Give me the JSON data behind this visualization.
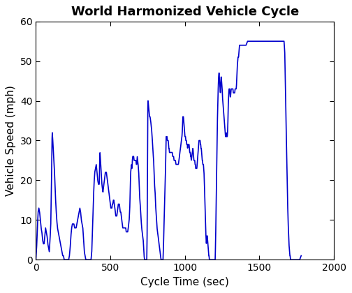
{
  "title": "World Harmonized Vehicle Cycle",
  "xlabel": "Cycle Time (sec)",
  "ylabel": "Vehicle Speed (mph)",
  "line_color": "#0000CC",
  "line_width": 1.2,
  "xlim": [
    0,
    2000
  ],
  "ylim": [
    0,
    60
  ],
  "xticks": [
    0,
    500,
    1000,
    1500,
    2000
  ],
  "yticks": [
    0,
    10,
    20,
    30,
    40,
    50,
    60
  ],
  "title_fontsize": 13,
  "label_fontsize": 11,
  "tick_fontsize": 10,
  "background_color": "#ffffff",
  "grid": false,
  "waypoints": [
    [
      0,
      0
    ],
    [
      5,
      3
    ],
    [
      10,
      8
    ],
    [
      15,
      12
    ],
    [
      20,
      13
    ],
    [
      25,
      12
    ],
    [
      30,
      10
    ],
    [
      35,
      8
    ],
    [
      40,
      7
    ],
    [
      45,
      5
    ],
    [
      50,
      4
    ],
    [
      55,
      4
    ],
    [
      60,
      6
    ],
    [
      65,
      8
    ],
    [
      70,
      7
    ],
    [
      75,
      6
    ],
    [
      80,
      4
    ],
    [
      85,
      3
    ],
    [
      90,
      2
    ],
    [
      95,
      5
    ],
    [
      100,
      9
    ],
    [
      105,
      20
    ],
    [
      108,
      30
    ],
    [
      110,
      32
    ],
    [
      112,
      31
    ],
    [
      115,
      29
    ],
    [
      120,
      26
    ],
    [
      125,
      22
    ],
    [
      130,
      17
    ],
    [
      135,
      13
    ],
    [
      140,
      10
    ],
    [
      145,
      8
    ],
    [
      150,
      7
    ],
    [
      155,
      6
    ],
    [
      160,
      5
    ],
    [
      165,
      4
    ],
    [
      170,
      3
    ],
    [
      175,
      2
    ],
    [
      180,
      1
    ],
    [
      185,
      1
    ],
    [
      190,
      0
    ],
    [
      195,
      0
    ],
    [
      200,
      0
    ],
    [
      205,
      0
    ],
    [
      210,
      0
    ],
    [
      215,
      0
    ],
    [
      220,
      0
    ],
    [
      225,
      1
    ],
    [
      230,
      3
    ],
    [
      235,
      6
    ],
    [
      240,
      8
    ],
    [
      245,
      9
    ],
    [
      250,
      9
    ],
    [
      255,
      9
    ],
    [
      260,
      8
    ],
    [
      265,
      8
    ],
    [
      270,
      8
    ],
    [
      275,
      9
    ],
    [
      280,
      10
    ],
    [
      285,
      11
    ],
    [
      290,
      12
    ],
    [
      295,
      13
    ],
    [
      300,
      12
    ],
    [
      305,
      10
    ],
    [
      310,
      9
    ],
    [
      315,
      8
    ],
    [
      320,
      5
    ],
    [
      325,
      2
    ],
    [
      330,
      1
    ],
    [
      335,
      0
    ],
    [
      340,
      0
    ],
    [
      345,
      0
    ],
    [
      350,
      0
    ],
    [
      355,
      0
    ],
    [
      360,
      0
    ],
    [
      365,
      0
    ],
    [
      370,
      0
    ],
    [
      375,
      2
    ],
    [
      380,
      8
    ],
    [
      385,
      14
    ],
    [
      390,
      19
    ],
    [
      395,
      22
    ],
    [
      400,
      23
    ],
    [
      405,
      24
    ],
    [
      410,
      22
    ],
    [
      415,
      20
    ],
    [
      420,
      19
    ],
    [
      425,
      19
    ],
    [
      427,
      23
    ],
    [
      430,
      27
    ],
    [
      432,
      26
    ],
    [
      435,
      24
    ],
    [
      438,
      22
    ],
    [
      440,
      21
    ],
    [
      443,
      19
    ],
    [
      446,
      18
    ],
    [
      450,
      17
    ],
    [
      453,
      18
    ],
    [
      456,
      19
    ],
    [
      460,
      20
    ],
    [
      463,
      21
    ],
    [
      466,
      22
    ],
    [
      470,
      22
    ],
    [
      473,
      22
    ],
    [
      476,
      21
    ],
    [
      480,
      20
    ],
    [
      483,
      19
    ],
    [
      486,
      18
    ],
    [
      490,
      17
    ],
    [
      493,
      16
    ],
    [
      496,
      15
    ],
    [
      500,
      14
    ],
    [
      503,
      13
    ],
    [
      506,
      13
    ],
    [
      510,
      13
    ],
    [
      513,
      14
    ],
    [
      516,
      14
    ],
    [
      520,
      15
    ],
    [
      523,
      15
    ],
    [
      526,
      14
    ],
    [
      530,
      13
    ],
    [
      533,
      12
    ],
    [
      536,
      11
    ],
    [
      540,
      11
    ],
    [
      543,
      11
    ],
    [
      546,
      12
    ],
    [
      550,
      13
    ],
    [
      553,
      14
    ],
    [
      556,
      14
    ],
    [
      560,
      14
    ],
    [
      563,
      13
    ],
    [
      566,
      12
    ],
    [
      570,
      12
    ],
    [
      573,
      11
    ],
    [
      576,
      10
    ],
    [
      580,
      9
    ],
    [
      583,
      8
    ],
    [
      586,
      8
    ],
    [
      590,
      8
    ],
    [
      593,
      8
    ],
    [
      596,
      8
    ],
    [
      600,
      8
    ],
    [
      603,
      8
    ],
    [
      606,
      7
    ],
    [
      610,
      7
    ],
    [
      613,
      7
    ],
    [
      616,
      7
    ],
    [
      620,
      8
    ],
    [
      623,
      9
    ],
    [
      626,
      10
    ],
    [
      630,
      13
    ],
    [
      633,
      18
    ],
    [
      636,
      22
    ],
    [
      639,
      23
    ],
    [
      641,
      24
    ],
    [
      643,
      23
    ],
    [
      645,
      23
    ],
    [
      647,
      25
    ],
    [
      650,
      26
    ],
    [
      653,
      26
    ],
    [
      656,
      26
    ],
    [
      659,
      25
    ],
    [
      662,
      25
    ],
    [
      665,
      25
    ],
    [
      668,
      25
    ],
    [
      671,
      25
    ],
    [
      674,
      24
    ],
    [
      677,
      24
    ],
    [
      680,
      26
    ],
    [
      683,
      25
    ],
    [
      686,
      24
    ],
    [
      690,
      22
    ],
    [
      693,
      19
    ],
    [
      696,
      16
    ],
    [
      700,
      14
    ],
    [
      703,
      12
    ],
    [
      706,
      10
    ],
    [
      710,
      8
    ],
    [
      713,
      7
    ],
    [
      716,
      6
    ],
    [
      720,
      5
    ],
    [
      723,
      3
    ],
    [
      726,
      1
    ],
    [
      729,
      0
    ],
    [
      732,
      0
    ],
    [
      735,
      0
    ],
    [
      738,
      0
    ],
    [
      741,
      0
    ],
    [
      744,
      0
    ],
    [
      746,
      5
    ],
    [
      748,
      15
    ],
    [
      750,
      32
    ],
    [
      751,
      38
    ],
    [
      752,
      40
    ],
    [
      753,
      40
    ],
    [
      755,
      39
    ],
    [
      758,
      38
    ],
    [
      760,
      37
    ],
    [
      763,
      36
    ],
    [
      766,
      36
    ],
    [
      770,
      35
    ],
    [
      773,
      34
    ],
    [
      776,
      33
    ],
    [
      780,
      31
    ],
    [
      783,
      29
    ],
    [
      786,
      27
    ],
    [
      790,
      25
    ],
    [
      793,
      22
    ],
    [
      796,
      19
    ],
    [
      800,
      17
    ],
    [
      803,
      14
    ],
    [
      806,
      12
    ],
    [
      810,
      10
    ],
    [
      813,
      8
    ],
    [
      816,
      7
    ],
    [
      820,
      6
    ],
    [
      823,
      5
    ],
    [
      826,
      4
    ],
    [
      830,
      3
    ],
    [
      833,
      2
    ],
    [
      836,
      1
    ],
    [
      840,
      0
    ],
    [
      843,
      0
    ],
    [
      846,
      0
    ],
    [
      850,
      0
    ],
    [
      853,
      0
    ],
    [
      856,
      3
    ],
    [
      859,
      8
    ],
    [
      862,
      12
    ],
    [
      865,
      16
    ],
    [
      868,
      20
    ],
    [
      870,
      23
    ],
    [
      872,
      27
    ],
    [
      874,
      31
    ],
    [
      876,
      31
    ],
    [
      878,
      31
    ],
    [
      880,
      31
    ],
    [
      882,
      30
    ],
    [
      884,
      30
    ],
    [
      886,
      30
    ],
    [
      888,
      30
    ],
    [
      890,
      29
    ],
    [
      892,
      28
    ],
    [
      894,
      28
    ],
    [
      896,
      27
    ],
    [
      898,
      27
    ],
    [
      900,
      27
    ],
    [
      903,
      27
    ],
    [
      906,
      27
    ],
    [
      909,
      27
    ],
    [
      912,
      27
    ],
    [
      915,
      27
    ],
    [
      918,
      26
    ],
    [
      921,
      26
    ],
    [
      924,
      26
    ],
    [
      927,
      25
    ],
    [
      930,
      25
    ],
    [
      933,
      25
    ],
    [
      936,
      25
    ],
    [
      940,
      24
    ],
    [
      943,
      24
    ],
    [
      946,
      24
    ],
    [
      950,
      24
    ],
    [
      953,
      24
    ],
    [
      956,
      24
    ],
    [
      960,
      25
    ],
    [
      963,
      26
    ],
    [
      966,
      27
    ],
    [
      970,
      28
    ],
    [
      973,
      29
    ],
    [
      976,
      30
    ],
    [
      980,
      31
    ],
    [
      982,
      32
    ],
    [
      984,
      34
    ],
    [
      986,
      36
    ],
    [
      988,
      36
    ],
    [
      990,
      36
    ],
    [
      992,
      35
    ],
    [
      994,
      34
    ],
    [
      996,
      33
    ],
    [
      998,
      32
    ],
    [
      1000,
      31
    ],
    [
      1002,
      31
    ],
    [
      1004,
      31
    ],
    [
      1006,
      30
    ],
    [
      1008,
      30
    ],
    [
      1010,
      30
    ],
    [
      1012,
      29
    ],
    [
      1014,
      29
    ],
    [
      1016,
      29
    ],
    [
      1018,
      28
    ],
    [
      1020,
      29
    ],
    [
      1022,
      29
    ],
    [
      1024,
      29
    ],
    [
      1026,
      29
    ],
    [
      1028,
      29
    ],
    [
      1030,
      28
    ],
    [
      1032,
      27
    ],
    [
      1034,
      27
    ],
    [
      1036,
      27
    ],
    [
      1038,
      26
    ],
    [
      1040,
      26
    ],
    [
      1043,
      25
    ],
    [
      1046,
      26
    ],
    [
      1050,
      27
    ],
    [
      1052,
      28
    ],
    [
      1054,
      28
    ],
    [
      1056,
      27
    ],
    [
      1058,
      26
    ],
    [
      1060,
      25
    ],
    [
      1062,
      25
    ],
    [
      1064,
      25
    ],
    [
      1066,
      25
    ],
    [
      1068,
      24
    ],
    [
      1070,
      24
    ],
    [
      1072,
      23
    ],
    [
      1074,
      23
    ],
    [
      1076,
      23
    ],
    [
      1080,
      23
    ],
    [
      1082,
      24
    ],
    [
      1084,
      25
    ],
    [
      1086,
      26
    ],
    [
      1088,
      27
    ],
    [
      1090,
      28
    ],
    [
      1092,
      29
    ],
    [
      1094,
      30
    ],
    [
      1096,
      30
    ],
    [
      1098,
      30
    ],
    [
      1100,
      30
    ],
    [
      1102,
      30
    ],
    [
      1104,
      29
    ],
    [
      1106,
      29
    ],
    [
      1108,
      28
    ],
    [
      1110,
      28
    ],
    [
      1112,
      27
    ],
    [
      1114,
      26
    ],
    [
      1116,
      25
    ],
    [
      1118,
      25
    ],
    [
      1120,
      24
    ],
    [
      1122,
      24
    ],
    [
      1124,
      24
    ],
    [
      1126,
      23
    ],
    [
      1128,
      22
    ],
    [
      1130,
      20
    ],
    [
      1133,
      16
    ],
    [
      1136,
      12
    ],
    [
      1139,
      8
    ],
    [
      1142,
      5
    ],
    [
      1144,
      4
    ],
    [
      1146,
      5
    ],
    [
      1148,
      6
    ],
    [
      1150,
      6
    ],
    [
      1152,
      5
    ],
    [
      1154,
      4
    ],
    [
      1156,
      3
    ],
    [
      1158,
      2
    ],
    [
      1160,
      1
    ],
    [
      1162,
      1
    ],
    [
      1164,
      0
    ],
    [
      1166,
      0
    ],
    [
      1168,
      0
    ],
    [
      1170,
      0
    ],
    [
      1172,
      0
    ],
    [
      1174,
      0
    ],
    [
      1176,
      0
    ],
    [
      1178,
      0
    ],
    [
      1180,
      0
    ],
    [
      1185,
      0
    ],
    [
      1190,
      0
    ],
    [
      1195,
      0
    ],
    [
      1200,
      0
    ],
    [
      1203,
      0
    ],
    [
      1206,
      5
    ],
    [
      1209,
      12
    ],
    [
      1212,
      20
    ],
    [
      1215,
      28
    ],
    [
      1218,
      35
    ],
    [
      1221,
      40
    ],
    [
      1224,
      44
    ],
    [
      1226,
      46
    ],
    [
      1228,
      47
    ],
    [
      1229,
      47
    ],
    [
      1230,
      47
    ],
    [
      1231,
      46
    ],
    [
      1232,
      45
    ],
    [
      1234,
      44
    ],
    [
      1236,
      43
    ],
    [
      1238,
      42
    ],
    [
      1240,
      44
    ],
    [
      1242,
      46
    ],
    [
      1244,
      46
    ],
    [
      1246,
      45
    ],
    [
      1248,
      44
    ],
    [
      1250,
      43
    ],
    [
      1252,
      41
    ],
    [
      1254,
      40
    ],
    [
      1256,
      39
    ],
    [
      1258,
      38
    ],
    [
      1260,
      37
    ],
    [
      1262,
      36
    ],
    [
      1264,
      35
    ],
    [
      1266,
      34
    ],
    [
      1268,
      33
    ],
    [
      1270,
      32
    ],
    [
      1272,
      31
    ],
    [
      1274,
      31
    ],
    [
      1276,
      31
    ],
    [
      1278,
      32
    ],
    [
      1280,
      31
    ],
    [
      1282,
      31
    ],
    [
      1284,
      31
    ],
    [
      1286,
      32
    ],
    [
      1288,
      34
    ],
    [
      1290,
      38
    ],
    [
      1292,
      40
    ],
    [
      1294,
      42
    ],
    [
      1296,
      43
    ],
    [
      1298,
      43
    ],
    [
      1300,
      43
    ],
    [
      1302,
      42
    ],
    [
      1304,
      41
    ],
    [
      1306,
      41
    ],
    [
      1308,
      42
    ],
    [
      1310,
      43
    ],
    [
      1312,
      43
    ],
    [
      1314,
      43
    ],
    [
      1316,
      43
    ],
    [
      1318,
      43
    ],
    [
      1320,
      43
    ],
    [
      1322,
      43
    ],
    [
      1324,
      42
    ],
    [
      1326,
      42
    ],
    [
      1328,
      42
    ],
    [
      1330,
      42
    ],
    [
      1332,
      42
    ],
    [
      1334,
      42
    ],
    [
      1336,
      43
    ],
    [
      1338,
      43
    ],
    [
      1340,
      43
    ],
    [
      1342,
      43
    ],
    [
      1344,
      43
    ],
    [
      1346,
      44
    ],
    [
      1348,
      46
    ],
    [
      1350,
      48
    ],
    [
      1352,
      49
    ],
    [
      1354,
      50
    ],
    [
      1356,
      51
    ],
    [
      1358,
      51
    ],
    [
      1360,
      51
    ],
    [
      1362,
      52
    ],
    [
      1364,
      53
    ],
    [
      1366,
      54
    ],
    [
      1368,
      54
    ],
    [
      1370,
      54
    ],
    [
      1380,
      54
    ],
    [
      1390,
      54
    ],
    [
      1400,
      54
    ],
    [
      1410,
      54
    ],
    [
      1420,
      55
    ],
    [
      1430,
      55
    ],
    [
      1440,
      55
    ],
    [
      1450,
      55
    ],
    [
      1460,
      55
    ],
    [
      1470,
      55
    ],
    [
      1480,
      55
    ],
    [
      1490,
      55
    ],
    [
      1500,
      55
    ],
    [
      1510,
      55
    ],
    [
      1520,
      55
    ],
    [
      1530,
      55
    ],
    [
      1540,
      55
    ],
    [
      1550,
      55
    ],
    [
      1560,
      55
    ],
    [
      1570,
      55
    ],
    [
      1580,
      55
    ],
    [
      1590,
      55
    ],
    [
      1600,
      55
    ],
    [
      1610,
      55
    ],
    [
      1620,
      55
    ],
    [
      1630,
      55
    ],
    [
      1640,
      55
    ],
    [
      1650,
      55
    ],
    [
      1660,
      55
    ],
    [
      1665,
      55
    ],
    [
      1667,
      54
    ],
    [
      1670,
      52
    ],
    [
      1672,
      48
    ],
    [
      1674,
      44
    ],
    [
      1676,
      40
    ],
    [
      1678,
      36
    ],
    [
      1680,
      32
    ],
    [
      1682,
      28
    ],
    [
      1684,
      24
    ],
    [
      1686,
      20
    ],
    [
      1688,
      16
    ],
    [
      1690,
      13
    ],
    [
      1692,
      10
    ],
    [
      1694,
      8
    ],
    [
      1696,
      6
    ],
    [
      1698,
      4
    ],
    [
      1700,
      3
    ],
    [
      1702,
      2
    ],
    [
      1704,
      1
    ],
    [
      1706,
      1
    ],
    [
      1708,
      0
    ],
    [
      1710,
      0
    ],
    [
      1720,
      0
    ],
    [
      1730,
      0
    ],
    [
      1740,
      0
    ],
    [
      1750,
      0
    ],
    [
      1760,
      0
    ],
    [
      1770,
      0
    ],
    [
      1780,
      1
    ]
  ]
}
